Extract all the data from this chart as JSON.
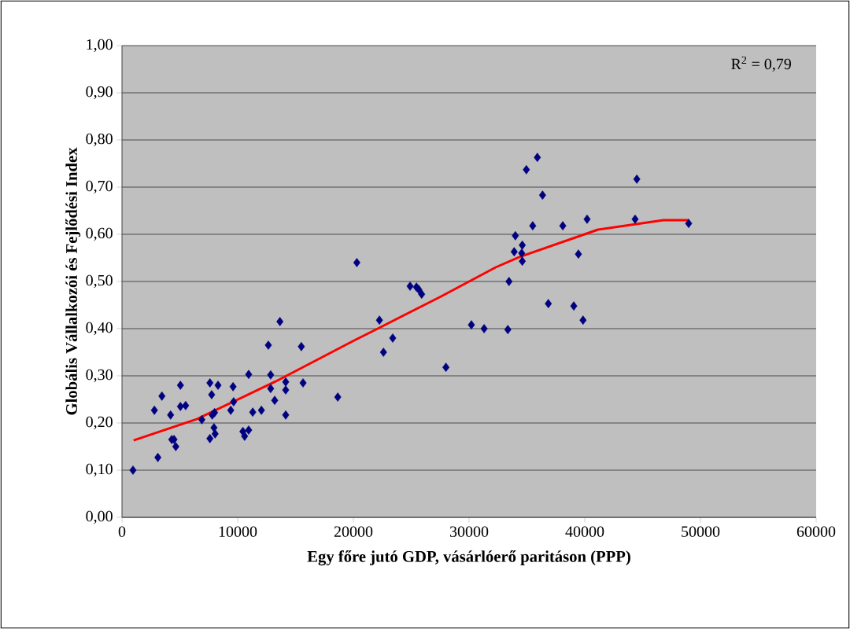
{
  "chart_data": {
    "type": "scatter",
    "xlabel": "Egy főre jutó GDP, vásárlóerő paritáson (PPP)",
    "ylabel": "Globális Vállalkozói és Fejlődési Index",
    "annotations": [
      "R$^{2}$ = 0,79"
    ],
    "xlim": [
      0,
      60000
    ],
    "xticks": [
      0,
      10000,
      20000,
      30000,
      40000,
      50000,
      60000
    ],
    "ylim": [
      0,
      1
    ],
    "yticks": [
      {
        "value": 0,
        "label": "0,00"
      },
      {
        "value": 0.1,
        "label": "0,10"
      },
      {
        "value": 0.2,
        "label": "0,20"
      },
      {
        "value": 0.3,
        "label": "0,30"
      },
      {
        "value": 0.4,
        "label": "0,40"
      },
      {
        "value": 0.5,
        "label": "0,50"
      },
      {
        "value": 0.6,
        "label": "0,60"
      },
      {
        "value": 0.7,
        "label": "0,70"
      },
      {
        "value": 0.8,
        "label": "0,80"
      },
      {
        "value": 0.9,
        "label": "0,90"
      },
      {
        "value": 1,
        "label": "1,00"
      }
    ],
    "grid": "y",
    "marker": "diamond",
    "series": [
      {
        "color": "#000080",
        "x": [
          950,
          3100,
          2800,
          3450,
          4200,
          4300,
          4500,
          4650,
          5050,
          5050,
          5500,
          6900,
          7600,
          7750,
          8300,
          7800,
          8000,
          7950,
          8050,
          7600,
          9600,
          9650,
          9400,
          10950,
          10450,
          10600,
          10950,
          11300,
          12050,
          12650,
          12850,
          12850,
          13200,
          13650,
          14150,
          14150,
          14150,
          15500,
          15650,
          18650,
          20300,
          24900,
          25450,
          25650,
          25900,
          22250,
          23400,
          22600,
          30200,
          31300,
          28000,
          33350,
          33450,
          34000,
          34600,
          33900,
          34600,
          34550,
          34950,
          35900,
          36350,
          35500,
          36850,
          38100,
          39050,
          39450,
          39850,
          40200,
          44500,
          44350,
          48980
        ],
        "values": [
          0.1,
          0.127,
          0.227,
          0.257,
          0.217,
          0.165,
          0.165,
          0.15,
          0.28,
          0.235,
          0.237,
          0.207,
          0.285,
          0.26,
          0.28,
          0.217,
          0.222,
          0.19,
          0.177,
          0.167,
          0.277,
          0.245,
          0.227,
          0.303,
          0.182,
          0.172,
          0.185,
          0.223,
          0.227,
          0.365,
          0.302,
          0.273,
          0.248,
          0.415,
          0.287,
          0.27,
          0.217,
          0.362,
          0.285,
          0.255,
          0.54,
          0.49,
          0.488,
          0.483,
          0.473,
          0.418,
          0.38,
          0.35,
          0.408,
          0.4,
          0.318,
          0.398,
          0.5,
          0.597,
          0.577,
          0.563,
          0.543,
          0.56,
          0.737,
          0.763,
          0.683,
          0.618,
          0.453,
          0.618,
          0.448,
          0.558,
          0.418,
          0.632,
          0.717,
          0.632,
          0.623
        ]
      },
      {
        "type": "line",
        "color": "#ff0000",
        "marker": "none",
        "line_style": "solid",
        "x": [
          1000,
          6450,
          13270,
          20070,
          22100,
          27550,
          32300,
          34350,
          41150,
          46800,
          48980
        ],
        "values": [
          0.163,
          0.208,
          0.288,
          0.375,
          0.4,
          0.468,
          0.53,
          0.552,
          0.61,
          0.63,
          0.63
        ]
      }
    ]
  }
}
